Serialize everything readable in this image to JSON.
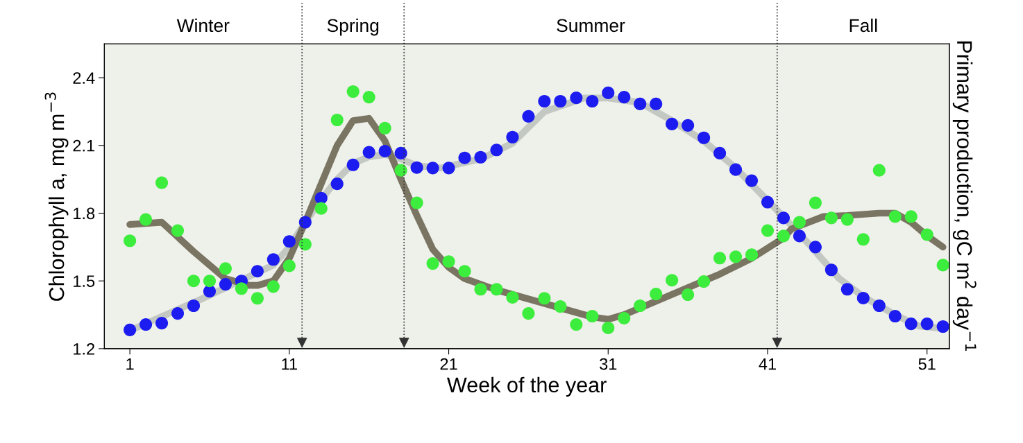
{
  "chart_data": {
    "type": "scatter",
    "xlabel": "Week of the year",
    "ylabel": "Chlorophyll a, mg m$^{−3}$",
    "y2label": "Primary production, gC m$^{2}$ day$^{−1}$",
    "xlim": [
      -0.6,
      52.4
    ],
    "xticks": [
      1,
      11,
      21,
      31,
      41,
      51
    ],
    "ylim": [
      1.2,
      2.55
    ],
    "yticks": [
      1.2,
      1.5,
      1.8,
      2.1,
      2.4
    ],
    "annotations": [
      "Winter",
      "Spring",
      "Summer",
      "Fall"
    ],
    "grid": false,
    "legend": false,
    "series": [
      {
        "type": "line",
        "color": "#c4c8c2",
        "marker": "none",
        "x": [
          1,
          5.5,
          8.5,
          10,
          11,
          12,
          13,
          14,
          15,
          16,
          17,
          18,
          19,
          20.5,
          23,
          25,
          27,
          29.5,
          31,
          33,
          35,
          37,
          39,
          41.5,
          43.5,
          45.5,
          47,
          49,
          50.5,
          52
        ],
        "values": [
          1.28,
          1.42,
          1.52,
          1.57,
          1.65,
          1.76,
          1.86,
          1.95,
          2.02,
          2.05,
          2.06,
          2.04,
          2.01,
          2.0,
          2.04,
          2.11,
          2.25,
          2.31,
          2.31,
          2.29,
          2.21,
          2.12,
          2.0,
          1.82,
          1.67,
          1.51,
          1.43,
          1.35,
          1.3,
          1.29
        ]
      },
      {
        "type": "line",
        "color": "#7a7462",
        "marker": "none",
        "x": [
          1,
          3,
          5,
          7,
          8.5,
          9,
          10,
          11,
          12,
          13,
          14,
          15,
          16,
          17,
          18,
          19,
          20,
          21,
          22,
          24,
          26,
          28,
          30,
          31,
          32,
          34,
          36,
          38,
          40,
          42,
          42.5,
          44.5,
          46,
          48,
          49,
          50,
          51,
          52
        ],
        "values": [
          1.75,
          1.76,
          1.63,
          1.51,
          1.48,
          1.48,
          1.5,
          1.6,
          1.76,
          1.93,
          2.1,
          2.21,
          2.22,
          2.12,
          1.95,
          1.79,
          1.64,
          1.56,
          1.51,
          1.46,
          1.42,
          1.38,
          1.34,
          1.33,
          1.35,
          1.41,
          1.47,
          1.53,
          1.6,
          1.69,
          1.73,
          1.785,
          1.79,
          1.8,
          1.8,
          1.76,
          1.7,
          1.65
        ]
      },
      {
        "color": "#1c1cf0",
        "marker": "circle",
        "x": [
          1,
          2,
          3,
          4,
          5,
          6,
          7,
          8,
          9,
          10,
          11,
          12,
          13,
          14,
          15,
          16,
          17,
          18,
          19,
          20,
          21,
          22,
          23,
          24,
          25,
          26,
          27,
          28,
          29,
          30,
          31,
          32,
          33,
          34,
          35,
          36,
          37,
          38,
          39,
          40,
          41,
          42,
          43,
          44,
          45,
          46,
          47,
          48,
          49,
          50,
          51,
          52
        ],
        "values": [
          1.283,
          1.307,
          1.313,
          1.356,
          1.39,
          1.454,
          1.485,
          1.5,
          1.543,
          1.595,
          1.675,
          1.76,
          1.867,
          1.93,
          2.014,
          2.07,
          2.075,
          2.066,
          2.002,
          2.0,
          2.0,
          2.045,
          2.048,
          2.08,
          2.137,
          2.229,
          2.296,
          2.296,
          2.311,
          2.296,
          2.333,
          2.314,
          2.284,
          2.284,
          2.195,
          2.189,
          2.134,
          2.066,
          1.993,
          1.944,
          1.849,
          1.779,
          1.699,
          1.65,
          1.549,
          1.463,
          1.424,
          1.39,
          1.344,
          1.31,
          1.31,
          1.298
        ]
      },
      {
        "color": "#3ded3d",
        "marker": "circle",
        "x": [
          1,
          2,
          3,
          4,
          5,
          6,
          7,
          8,
          9,
          10,
          11,
          12,
          13,
          14,
          15,
          16,
          17,
          18,
          19,
          20,
          21,
          22,
          23,
          24,
          25,
          26,
          27,
          28,
          29,
          30,
          31,
          32,
          33,
          34,
          35,
          36,
          37,
          38,
          39,
          40,
          41,
          42,
          43,
          44,
          45,
          46,
          47,
          48,
          49,
          50,
          51,
          52
        ],
        "values": [
          1.678,
          1.772,
          1.935,
          1.723,
          1.5,
          1.5,
          1.555,
          1.466,
          1.423,
          1.475,
          1.567,
          1.662,
          1.821,
          2.213,
          2.339,
          2.314,
          2.177,
          1.99,
          1.846,
          1.577,
          1.586,
          1.543,
          1.463,
          1.463,
          1.427,
          1.356,
          1.423,
          1.387,
          1.307,
          1.344,
          1.292,
          1.335,
          1.39,
          1.442,
          1.503,
          1.439,
          1.497,
          1.601,
          1.607,
          1.616,
          1.723,
          1.699,
          1.76,
          1.846,
          1.779,
          1.772,
          1.684,
          1.99,
          1.785,
          1.785,
          1.705,
          1.57
        ]
      }
    ],
    "ref_lines": [
      {
        "axis": "x",
        "value": 11.8,
        "line_style": "dotted",
        "color": "#333333"
      },
      {
        "axis": "x",
        "value": 18.2,
        "line_style": "dotted",
        "color": "#333333"
      },
      {
        "axis": "x",
        "value": 41.6,
        "line_style": "dotted",
        "color": "#333333"
      }
    ]
  }
}
